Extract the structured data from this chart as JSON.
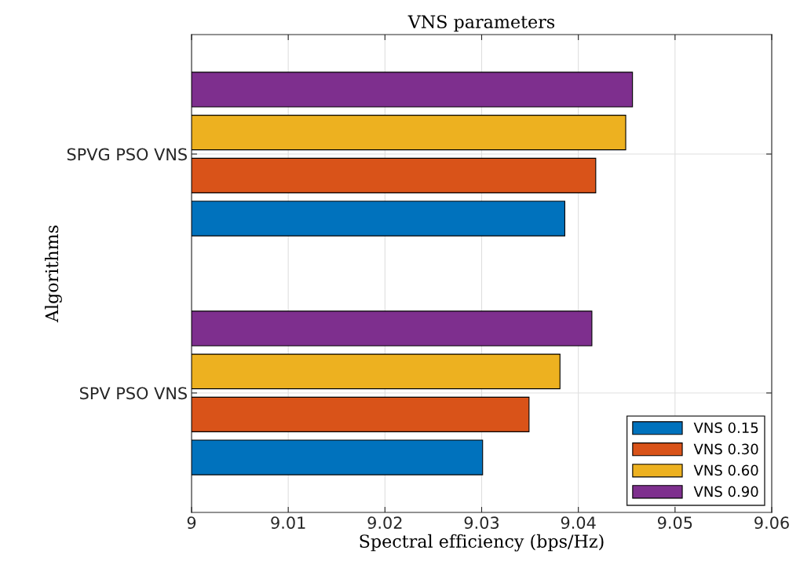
{
  "chart_data": {
    "type": "bar",
    "orientation": "horizontal",
    "title": "VNS parameters",
    "xlabel": "Spectral efficiency (bps/Hz)",
    "ylabel": "Algorithms",
    "categories": [
      "SPVG PSO VNS",
      "SPV PSO VNS"
    ],
    "series": [
      {
        "name": "VNS 0.15",
        "color": "#0072bd",
        "values": [
          9.0386,
          9.0301
        ]
      },
      {
        "name": "VNS 0.30",
        "color": "#d95319",
        "values": [
          9.0418,
          9.0349
        ]
      },
      {
        "name": "VNS 0.60",
        "color": "#edb120",
        "values": [
          9.0449,
          9.0381
        ]
      },
      {
        "name": "VNS 0.90",
        "color": "#7e2f8e",
        "values": [
          9.0456,
          9.0414
        ]
      }
    ],
    "xlim": [
      9,
      9.06
    ],
    "xticks": [
      9,
      9.01,
      9.02,
      9.03,
      9.04,
      9.05,
      9.06
    ],
    "grid": true,
    "legend": "bottom right"
  }
}
